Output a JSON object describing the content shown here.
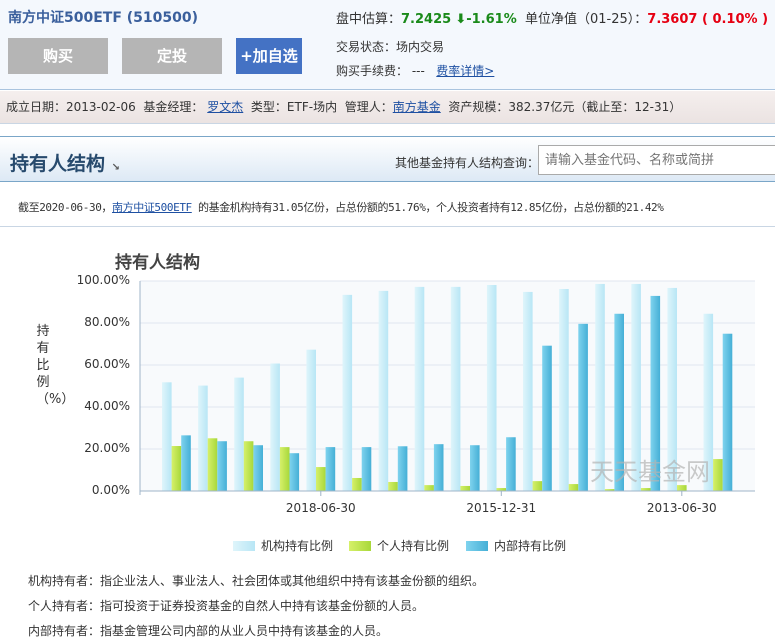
{
  "header": {
    "fund_name": "南方中证500ETF (510500)",
    "buttons": {
      "buy": "购买",
      "fixed": "定投",
      "add": "+加自选"
    },
    "estimate_label": "盘中估算：",
    "estimate_value": "7.2425",
    "estimate_change": "-1.61%",
    "nav_label": "单位净值（01-25）：",
    "nav_value": "7.3607 ( 0.10% )",
    "trade_status_label": "交易状态：",
    "trade_status": "场内交易",
    "fee_label": "购买手续费：",
    "fee_value": "---",
    "fee_link": "费率详情>"
  },
  "info": {
    "established_label": "成立日期：",
    "established": "2013-02-06",
    "manager_label": "基金经理：",
    "manager": "罗文杰",
    "type_label": "类型：",
    "type": "ETF-场内",
    "company_label": "管理人：",
    "company": "南方基金",
    "scale_label": "资产规模：",
    "scale": "382.37亿元（截止至：12-31）"
  },
  "section": {
    "title": "持有人结构",
    "search_label": "其他基金持有人结构查询：",
    "search_placeholder": "请输入基金代码、名称或简拼"
  },
  "summary": {
    "prefix": "截至2020-06-30，",
    "fund_link": "南方中证500ETF",
    "text": " 的基金机构持有31.05亿份，占总份额的51.76%，个人投资者持有12.85亿份，占总份额的21.42%"
  },
  "chart_data": {
    "type": "bar",
    "title": "持有人结构",
    "ylabel": "持有比例（%）",
    "ylim": [
      0,
      100
    ],
    "yticks": [
      "0.00%",
      "20.00%",
      "40.00%",
      "60.00%",
      "80.00%",
      "100.00%"
    ],
    "x_tick_labels": [
      {
        "index": 4,
        "label": "2018-06-30"
      },
      {
        "index": 9,
        "label": "2015-12-31"
      },
      {
        "index": 14,
        "label": "2013-06-30"
      }
    ],
    "grid": true,
    "legend": "bottom",
    "watermark": "天天基金网",
    "series": [
      {
        "name": "机构持有比例",
        "color": "#c4ecf7",
        "values": [
          51.76,
          50.2,
          54.0,
          60.7,
          67.3,
          93.4,
          95.3,
          97.2,
          97.2,
          98.1,
          94.8,
          96.2,
          98.6,
          98.6,
          96.7,
          84.4
        ]
      },
      {
        "name": "个人持有比例",
        "color": "#b8e34a",
        "values": [
          21.42,
          25.1,
          23.7,
          20.9,
          11.4,
          6.2,
          4.3,
          2.8,
          2.4,
          1.4,
          4.7,
          3.3,
          0.9,
          1.4,
          2.8,
          15.2
        ]
      },
      {
        "name": "内部持有比例",
        "color": "#5bbfe0",
        "values": [
          26.5,
          23.7,
          21.8,
          18.0,
          20.9,
          20.9,
          21.3,
          22.3,
          21.8,
          25.6,
          69.2,
          79.6,
          84.4,
          92.9,
          0,
          74.9
        ]
      }
    ]
  },
  "notes": [
    {
      "label": "机构持有者：",
      "text": "指企业法人、事业法人、社会团体或其他组织中持有该基金份额的组织。"
    },
    {
      "label": "个人持有者：",
      "text": "指可投资于证券投资基金的自然人中持有该基金份额的人员。"
    },
    {
      "label": "内部持有者：",
      "text": "指基金管理公司内部的从业人员中持有该基金的人员。"
    }
  ]
}
